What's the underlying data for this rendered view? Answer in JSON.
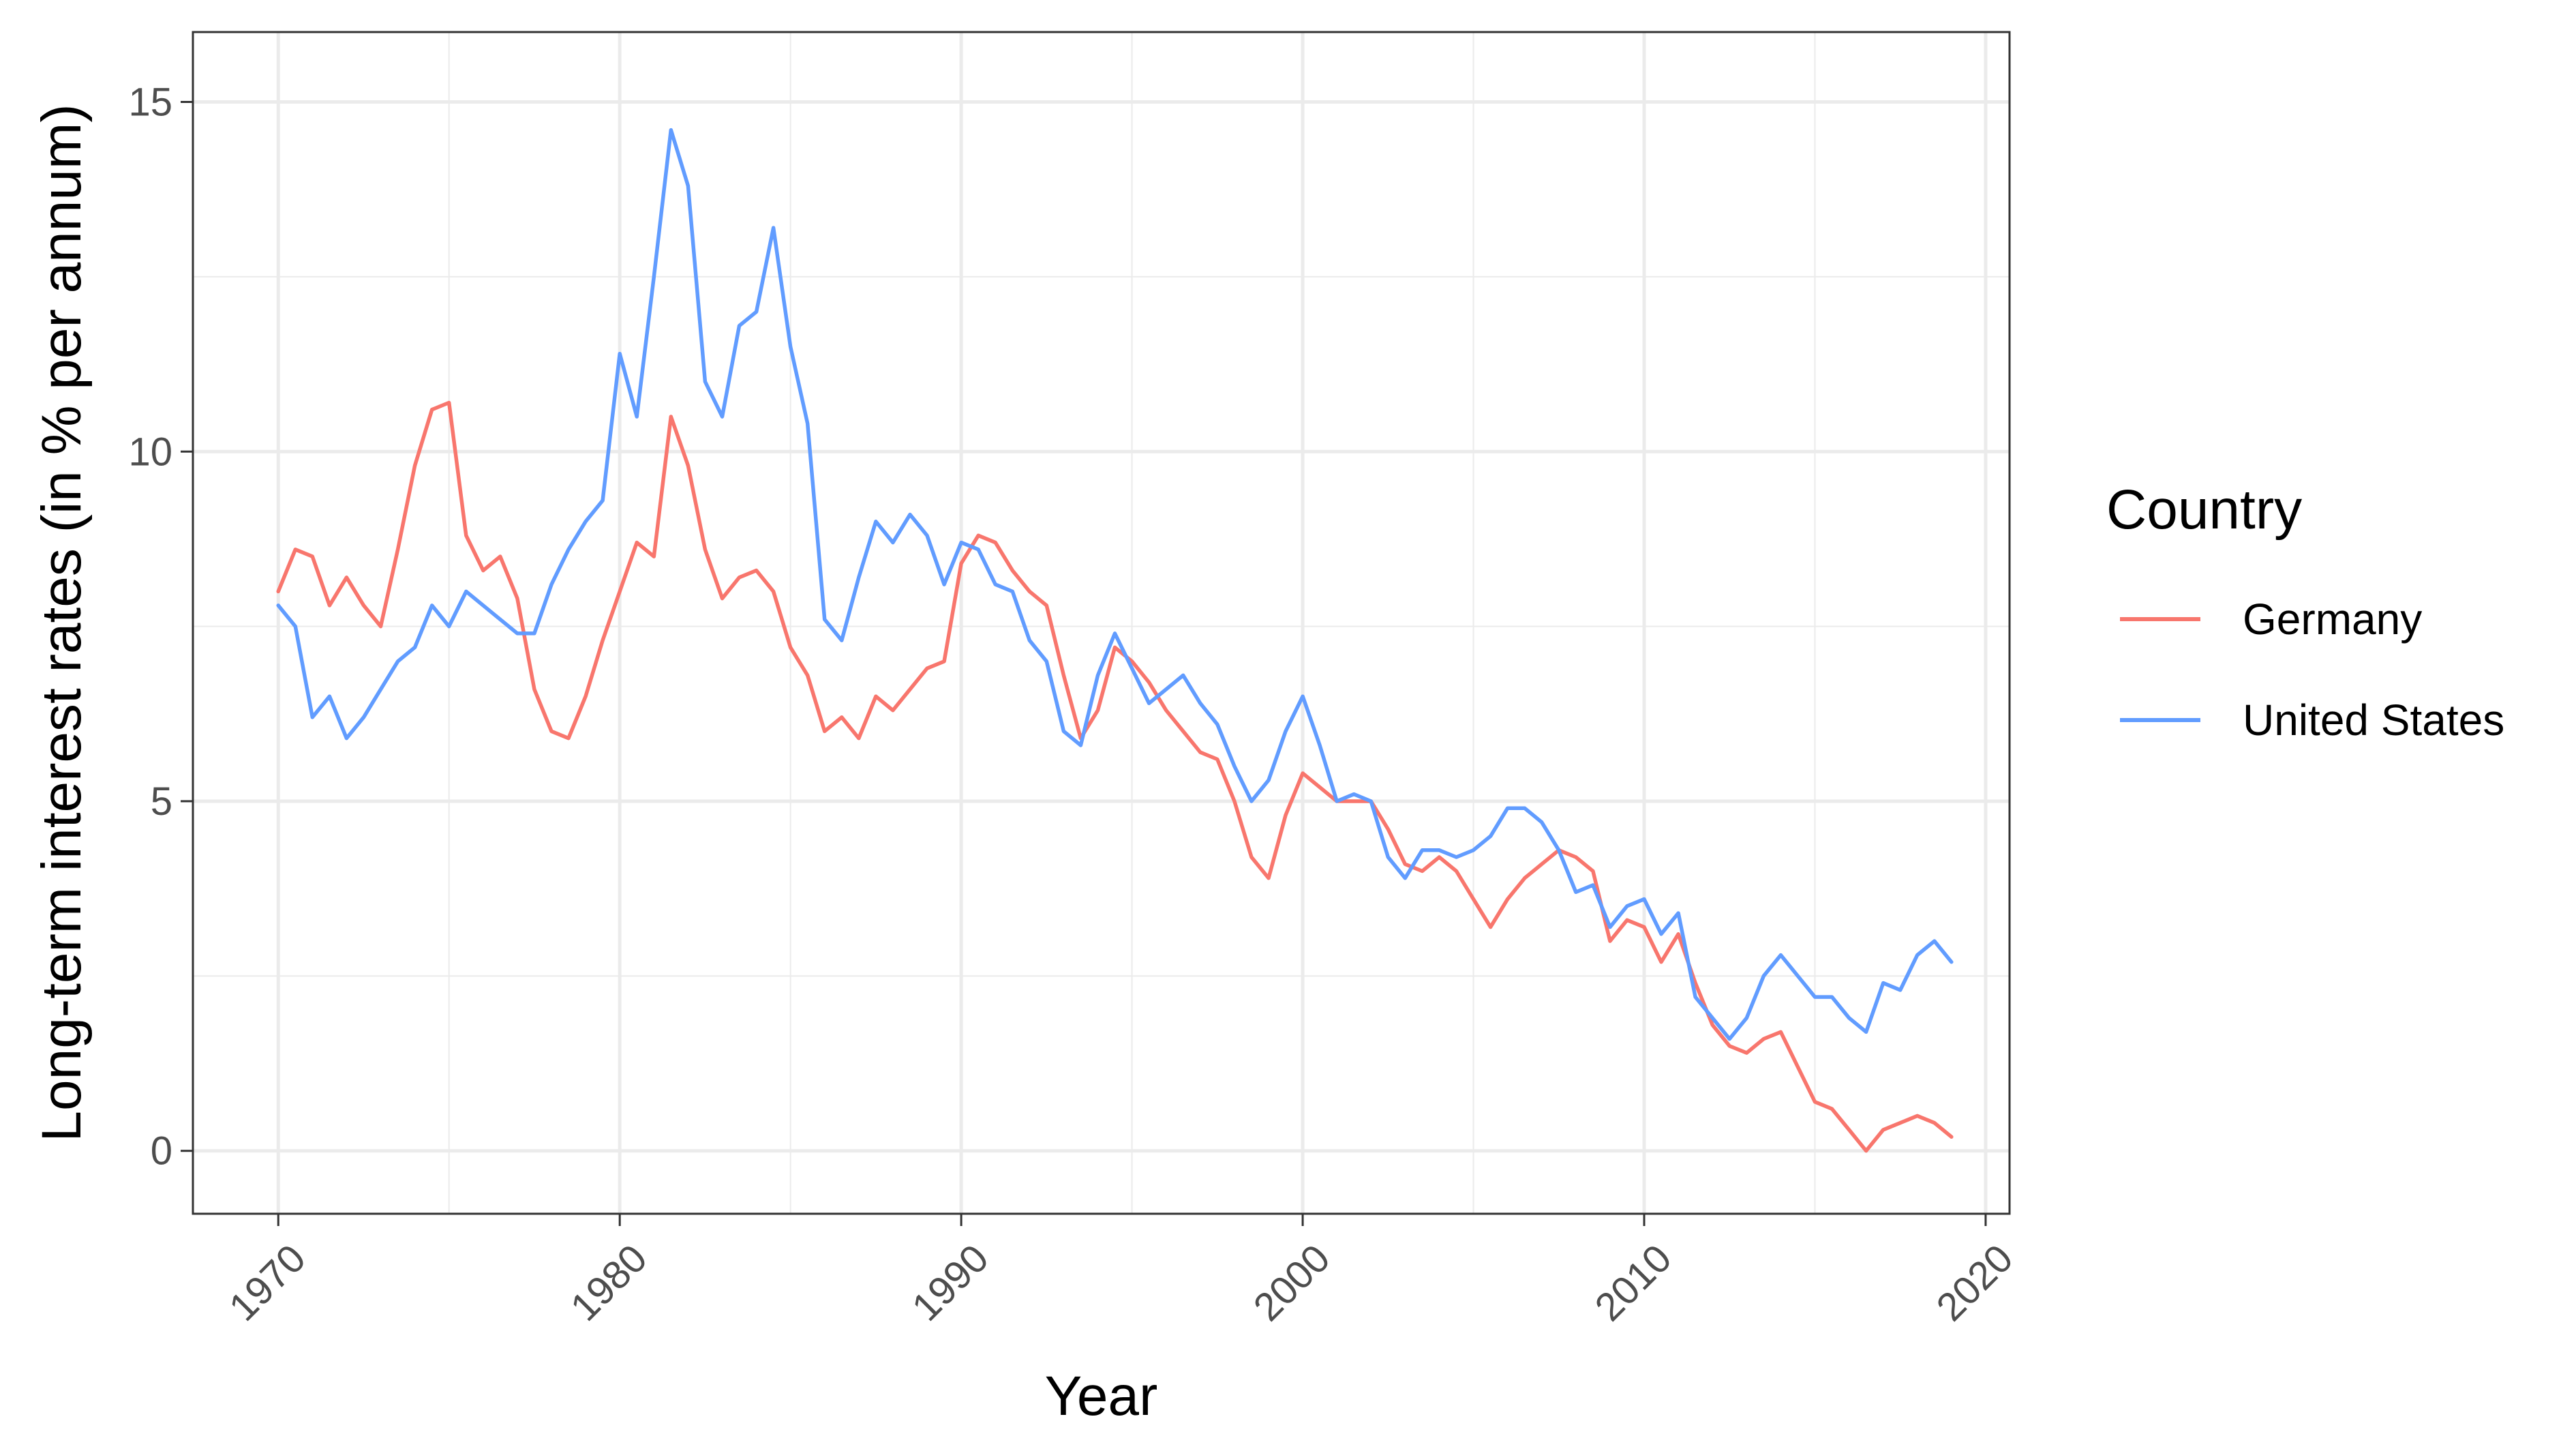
{
  "chart_data": {
    "type": "line",
    "title": "",
    "xlabel": "Year",
    "ylabel": "Long-term interest rates (in % per annum)",
    "xlim": [
      1967.5,
      2020.7
    ],
    "ylim": [
      -0.9,
      16.0
    ],
    "x_ticks": [
      1970,
      1980,
      1990,
      2000,
      2010,
      2020
    ],
    "x_tick_labels": [
      "1970",
      "1980",
      "1990",
      "2000",
      "2010",
      "2020"
    ],
    "y_ticks": [
      0,
      5,
      10,
      15
    ],
    "y_tick_labels": [
      "0",
      "5",
      "10",
      "15"
    ],
    "grid": true,
    "legend": {
      "title": "Country",
      "position": "right"
    },
    "series": [
      {
        "name": "Germany",
        "color": "#F8766D",
        "x": [
          1970.0,
          1970.5,
          1971.0,
          1971.5,
          1972.0,
          1972.5,
          1973.0,
          1973.5,
          1974.0,
          1974.5,
          1975.0,
          1975.5,
          1976.0,
          1976.5,
          1977.0,
          1977.5,
          1978.0,
          1978.5,
          1979.0,
          1979.5,
          1980.0,
          1980.5,
          1981.0,
          1981.5,
          1982.0,
          1982.5,
          1983.0,
          1983.5,
          1984.0,
          1984.5,
          1985.0,
          1985.5,
          1986.0,
          1986.5,
          1987.0,
          1987.5,
          1988.0,
          1988.5,
          1989.0,
          1989.5,
          1990.0,
          1990.5,
          1991.0,
          1991.5,
          1992.0,
          1992.5,
          1993.0,
          1993.5,
          1994.0,
          1994.5,
          1995.0,
          1995.5,
          1996.0,
          1996.5,
          1997.0,
          1997.5,
          1998.0,
          1998.5,
          1999.0,
          1999.5,
          2000.0,
          2000.5,
          2001.0,
          2001.5,
          2002.0,
          2002.5,
          2003.0,
          2003.5,
          2004.0,
          2004.5,
          2005.0,
          2005.5,
          2006.0,
          2006.5,
          2007.0,
          2007.5,
          2008.0,
          2008.5,
          2009.0,
          2009.5,
          2010.0,
          2010.5,
          2011.0,
          2011.5,
          2012.0,
          2012.5,
          2013.0,
          2013.5,
          2014.0,
          2014.5,
          2015.0,
          2015.5,
          2016.0,
          2016.5,
          2017.0,
          2017.5,
          2018.0,
          2018.5,
          2019.0
        ],
        "values": [
          8.0,
          8.6,
          8.5,
          7.8,
          8.2,
          7.8,
          7.5,
          8.6,
          9.8,
          10.6,
          10.7,
          8.8,
          8.3,
          8.5,
          7.9,
          6.6,
          6.0,
          5.9,
          6.5,
          7.3,
          8.0,
          8.7,
          8.5,
          10.5,
          9.8,
          8.6,
          7.9,
          8.2,
          8.3,
          8.0,
          7.2,
          6.8,
          6.0,
          6.2,
          5.9,
          6.5,
          6.3,
          6.6,
          6.9,
          7.0,
          8.4,
          8.8,
          8.7,
          8.3,
          8.0,
          7.8,
          6.8,
          5.9,
          6.3,
          7.2,
          7.0,
          6.7,
          6.3,
          6.0,
          5.7,
          5.6,
          5.0,
          4.2,
          3.9,
          4.8,
          5.4,
          5.2,
          5.0,
          5.0,
          5.0,
          4.6,
          4.1,
          4.0,
          4.2,
          4.0,
          3.6,
          3.2,
          3.6,
          3.9,
          4.1,
          4.3,
          4.2,
          4.0,
          3.0,
          3.3,
          3.2,
          2.7,
          3.1,
          2.4,
          1.8,
          1.5,
          1.4,
          1.6,
          1.7,
          1.2,
          0.7,
          0.6,
          0.3,
          0.0,
          0.3,
          0.4,
          0.5,
          0.4,
          0.2
        ]
      },
      {
        "name": "United States",
        "color": "#619CFF",
        "x": [
          1970.0,
          1970.5,
          1971.0,
          1971.5,
          1972.0,
          1972.5,
          1973.0,
          1973.5,
          1974.0,
          1974.5,
          1975.0,
          1975.5,
          1976.0,
          1976.5,
          1977.0,
          1977.5,
          1978.0,
          1978.5,
          1979.0,
          1979.5,
          1980.0,
          1980.5,
          1981.0,
          1981.5,
          1982.0,
          1982.5,
          1983.0,
          1983.5,
          1984.0,
          1984.5,
          1985.0,
          1985.5,
          1986.0,
          1986.5,
          1987.0,
          1987.5,
          1988.0,
          1988.5,
          1989.0,
          1989.5,
          1990.0,
          1990.5,
          1991.0,
          1991.5,
          1992.0,
          1992.5,
          1993.0,
          1993.5,
          1994.0,
          1994.5,
          1995.0,
          1995.5,
          1996.0,
          1996.5,
          1997.0,
          1997.5,
          1998.0,
          1998.5,
          1999.0,
          1999.5,
          2000.0,
          2000.5,
          2001.0,
          2001.5,
          2002.0,
          2002.5,
          2003.0,
          2003.5,
          2004.0,
          2004.5,
          2005.0,
          2005.5,
          2006.0,
          2006.5,
          2007.0,
          2007.5,
          2008.0,
          2008.5,
          2009.0,
          2009.5,
          2010.0,
          2010.5,
          2011.0,
          2011.5,
          2012.0,
          2012.5,
          2013.0,
          2013.5,
          2014.0,
          2014.5,
          2015.0,
          2015.5,
          2016.0,
          2016.5,
          2017.0,
          2017.5,
          2018.0,
          2018.5,
          2019.0
        ],
        "values": [
          7.8,
          7.5,
          6.2,
          6.5,
          5.9,
          6.2,
          6.6,
          7.0,
          7.2,
          7.8,
          7.5,
          8.0,
          7.8,
          7.6,
          7.4,
          7.4,
          8.1,
          8.6,
          9.0,
          9.3,
          11.4,
          10.5,
          12.5,
          14.6,
          13.8,
          11.0,
          10.5,
          11.8,
          12.0,
          13.2,
          11.5,
          10.4,
          7.6,
          7.3,
          8.2,
          9.0,
          8.7,
          9.1,
          8.8,
          8.1,
          8.7,
          8.6,
          8.1,
          8.0,
          7.3,
          7.0,
          6.0,
          5.8,
          6.8,
          7.4,
          6.9,
          6.4,
          6.6,
          6.8,
          6.4,
          6.1,
          5.5,
          5.0,
          5.3,
          6.0,
          6.5,
          5.8,
          5.0,
          5.1,
          5.0,
          4.2,
          3.9,
          4.3,
          4.3,
          4.2,
          4.3,
          4.5,
          4.9,
          4.9,
          4.7,
          4.3,
          3.7,
          3.8,
          3.2,
          3.5,
          3.6,
          3.1,
          3.4,
          2.2,
          1.9,
          1.6,
          1.9,
          2.5,
          2.8,
          2.5,
          2.2,
          2.2,
          1.9,
          1.7,
          2.4,
          2.3,
          2.8,
          3.0,
          2.7
        ]
      }
    ]
  }
}
